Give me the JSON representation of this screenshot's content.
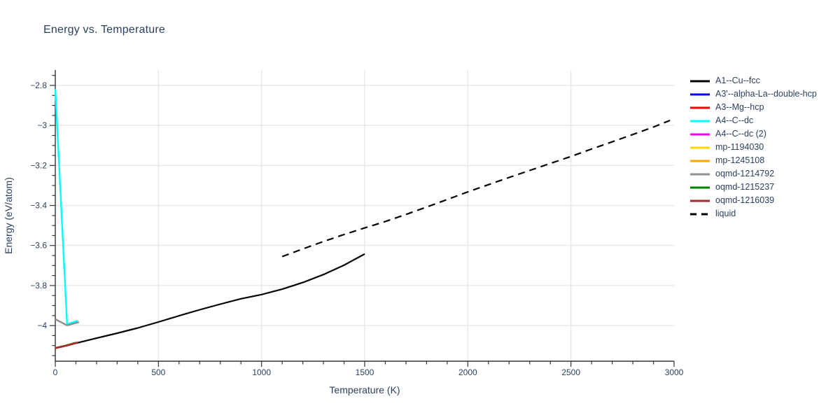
{
  "page": {
    "background": "#ffffff"
  },
  "chart_data": {
    "type": "line",
    "title": "Energy vs. Temperature",
    "xlabel": "Temperature (K)",
    "ylabel": "Energy (eV/atom)",
    "xlim": [
      0,
      3000
    ],
    "ylim": [
      -4.178,
      -2.723
    ],
    "xticks": [
      0,
      500,
      1000,
      1500,
      2000,
      2500,
      3000
    ],
    "xtick_labels": [
      "0",
      "500",
      "1000",
      "1500",
      "2000",
      "2500",
      "3000"
    ],
    "yticks": [
      -2.8,
      -3.0,
      -3.2,
      -3.4,
      -3.6,
      -3.8,
      -4.0
    ],
    "ytick_labels": [
      "−2.8",
      "−3",
      "−3.2",
      "−3.4",
      "−3.6",
      "−3.8",
      "−4"
    ],
    "x_minor_step": 100,
    "y_minor_step": 0.05,
    "grid": true,
    "legend_position": "right",
    "colors": {
      "text": "#2a3f5f",
      "axis": "#333333",
      "grid": "#e6e6e6"
    },
    "series": [
      {
        "name": "A1--Cu--fcc",
        "color": "#000000",
        "dash": "solid",
        "width": 2.2,
        "x": [
          0,
          100,
          200,
          300,
          400,
          500,
          600,
          700,
          800,
          900,
          1000,
          1100,
          1200,
          1300,
          1400,
          1500
        ],
        "y": [
          -4.113,
          -4.088,
          -4.063,
          -4.038,
          -4.012,
          -3.982,
          -3.951,
          -3.921,
          -3.893,
          -3.866,
          -3.845,
          -3.818,
          -3.785,
          -3.745,
          -3.698,
          -3.642
        ]
      },
      {
        "name": "A3'--alpha-La--double-hcp",
        "color": "#0000ff",
        "dash": "solid",
        "width": 2.2,
        "x": [
          0,
          50,
          100
        ],
        "y": [
          -4.112,
          -4.1,
          -4.085
        ]
      },
      {
        "name": "A3--Mg--hcp",
        "color": "#ff0000",
        "dash": "solid",
        "width": 2.2,
        "x": [
          0,
          50,
          100
        ],
        "y": [
          -4.112,
          -4.1,
          -4.085
        ]
      },
      {
        "name": "A4--C--dc",
        "color": "#00ffff",
        "dash": "solid",
        "width": 2.4,
        "x": [
          0,
          57,
          110
        ],
        "y": [
          -2.817,
          -3.993,
          -3.976
        ]
      },
      {
        "name": "A4--C--dc (2)",
        "color": "#ff00ff",
        "dash": "solid",
        "width": 2.2,
        "x": [
          0,
          50,
          100
        ],
        "y": [
          -4.112,
          -4.1,
          -4.085
        ]
      },
      {
        "name": "mp-1194030",
        "color": "#ffd700",
        "dash": "solid",
        "width": 2.2,
        "x": [
          0,
          50,
          100
        ],
        "y": [
          -4.112,
          -4.1,
          -4.085
        ]
      },
      {
        "name": "mp-1245108",
        "color": "#ffa500",
        "dash": "solid",
        "width": 2.2,
        "x": [
          0,
          50,
          100
        ],
        "y": [
          -4.112,
          -4.1,
          -4.085
        ]
      },
      {
        "name": "oqmd-1214792",
        "color": "#909090",
        "dash": "solid",
        "width": 2.4,
        "x": [
          0,
          57,
          115
        ],
        "y": [
          -3.968,
          -3.999,
          -3.983
        ]
      },
      {
        "name": "oqmd-1215237",
        "color": "#008000",
        "dash": "solid",
        "width": 2.2,
        "x": [
          0,
          50,
          100
        ],
        "y": [
          -4.112,
          -4.1,
          -4.085
        ]
      },
      {
        "name": "oqmd-1216039",
        "color": "#a52a2a",
        "dash": "solid",
        "width": 2.6,
        "x": [
          0,
          55,
          110
        ],
        "y": [
          -4.113,
          -4.1,
          -4.084
        ]
      },
      {
        "name": "liquid",
        "color": "#000000",
        "dash": "dash",
        "width": 2.2,
        "x": [
          1100,
          1200,
          1300,
          1400,
          1500,
          1600,
          1700,
          1800,
          1900,
          2000,
          2100,
          2200,
          2300,
          2400,
          2500,
          2600,
          2700,
          2800,
          2900,
          2980
        ],
        "y": [
          -3.655,
          -3.617,
          -3.58,
          -3.545,
          -3.512,
          -3.48,
          -3.445,
          -3.408,
          -3.37,
          -3.332,
          -3.296,
          -3.26,
          -3.225,
          -3.19,
          -3.155,
          -3.118,
          -3.082,
          -3.045,
          -3.008,
          -2.975
        ]
      }
    ]
  }
}
